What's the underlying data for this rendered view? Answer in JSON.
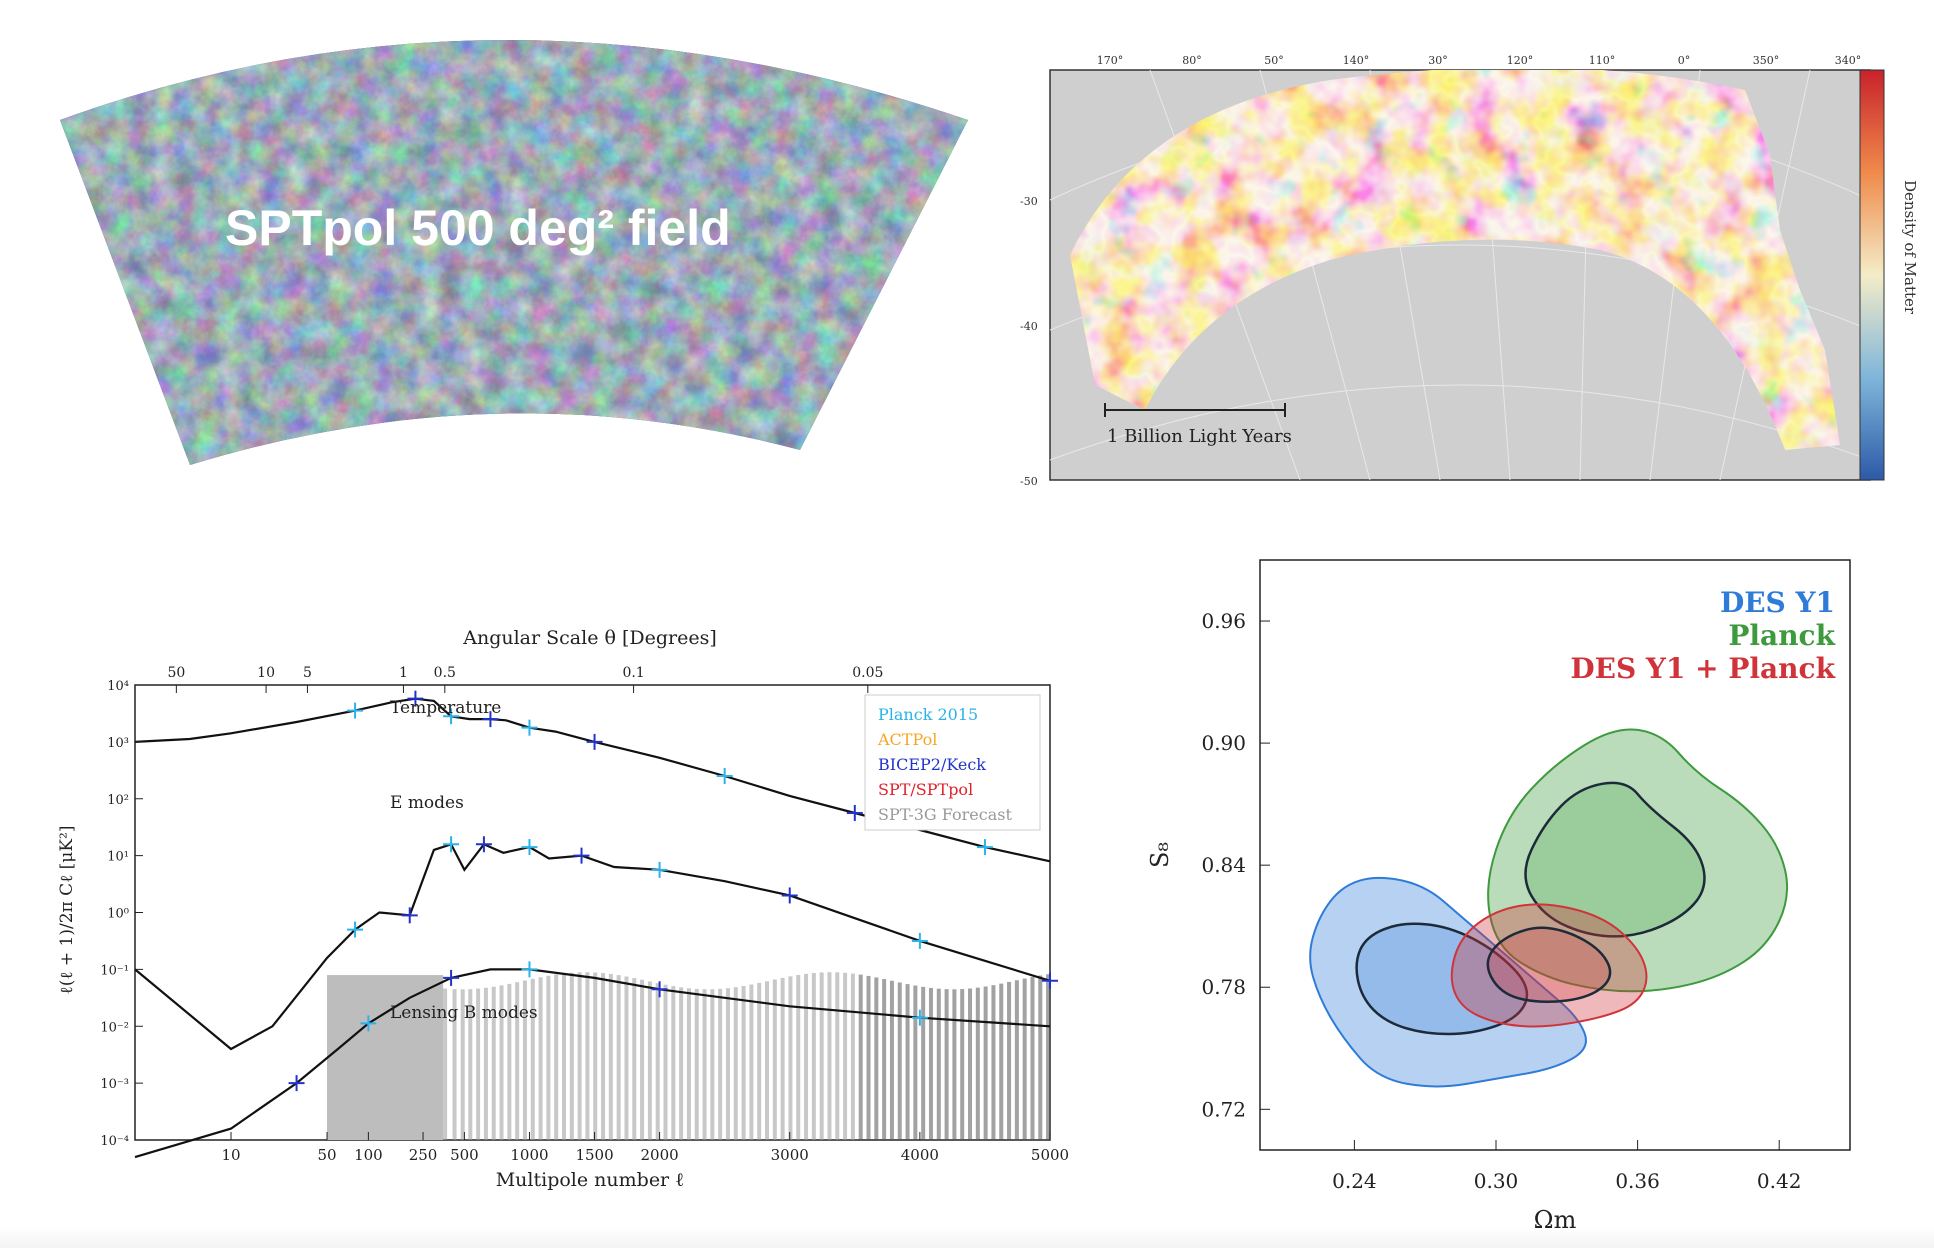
{
  "cmb_map": {
    "title": "SPTpol 500 deg² field",
    "colors": {
      "dark": "#2a3550",
      "mid": "#5f7689",
      "light": "#c9e6e8"
    }
  },
  "des_map": {
    "lon_labels": [
      "170°",
      "80°",
      "50°",
      "140°",
      "30°",
      "120°",
      "110°",
      "0°",
      "350°",
      "340°"
    ],
    "lat_labels": [
      "-30",
      "-40",
      "-50"
    ],
    "scale_label": "1 Billion Light Years",
    "colorbar_label": "Density of Matter",
    "colors": {
      "high": "#c8222b",
      "mid": "#f4ecc8",
      "low": "#2c5aa8"
    }
  },
  "chart_data": [
    {
      "type": "line",
      "title": "",
      "top_axis_label": "Angular Scale θ [Degrees]",
      "top_ticks": [
        "50",
        "10",
        "5",
        "1",
        "0.5",
        "0.1",
        "0.05"
      ],
      "top_tick_ell": [
        4,
        18,
        36,
        180,
        360,
        1800,
        3600
      ],
      "xlabel": "Multipole number ℓ",
      "ylabel": "ℓ(ℓ + 1)/2π Cℓ [μK²]",
      "x_ticks": [
        10,
        50,
        100,
        250,
        500,
        1000,
        1500,
        2000,
        3000,
        4000,
        5000
      ],
      "xlim": [
        2,
        5000
      ],
      "y_ticks": [
        "10⁴",
        "10³",
        "10²",
        "10¹",
        "10⁰",
        "10⁻¹",
        "10⁻²",
        "10⁻³",
        "10⁻⁴"
      ],
      "y_tick_exp": [
        4,
        3,
        2,
        1,
        0,
        -1,
        -2,
        -3,
        -4
      ],
      "ylim_log10": [
        -4,
        4
      ],
      "annotations": [
        "Temperature",
        "E modes",
        "Lensing B modes"
      ],
      "legend": [
        "Planck 2015",
        "ACTPol",
        "BICEP2/Keck",
        "SPT/SPTpol",
        "SPT-3G Forecast"
      ],
      "legend_colors": [
        "#2ab3e8",
        "#f5a623",
        "#2233cc",
        "#e0202a",
        "#999999"
      ],
      "series": [
        {
          "name": "Temperature",
          "x": [
            2,
            5,
            10,
            30,
            80,
            150,
            220,
            300,
            400,
            540,
            700,
            820,
            1000,
            1200,
            1500,
            2000,
            2500,
            3000,
            3500,
            4000,
            4500,
            5000
          ],
          "y_log10": [
            3.0,
            3.05,
            3.15,
            3.35,
            3.55,
            3.7,
            3.76,
            3.72,
            3.45,
            3.4,
            3.4,
            3.38,
            3.25,
            3.18,
            3.0,
            2.72,
            2.4,
            2.05,
            1.75,
            1.45,
            1.15,
            0.9
          ]
        },
        {
          "name": "E modes",
          "x": [
            2,
            10,
            20,
            50,
            80,
            120,
            200,
            300,
            400,
            500,
            650,
            800,
            1000,
            1150,
            1400,
            1650,
            2000,
            2500,
            3000,
            3500,
            4000,
            4500,
            5000
          ],
          "y_log10": [
            -1.0,
            -2.4,
            -2.0,
            -0.8,
            -0.3,
            0.0,
            -0.05,
            1.1,
            1.2,
            0.75,
            1.2,
            1.05,
            1.15,
            0.95,
            1.0,
            0.8,
            0.75,
            0.55,
            0.3,
            -0.1,
            -0.5,
            -0.85,
            -1.2
          ]
        },
        {
          "name": "Lensing B modes",
          "x": [
            2,
            10,
            30,
            60,
            100,
            200,
            400,
            700,
            1000,
            1500,
            2000,
            3000,
            4000,
            5000
          ],
          "y_log10": [
            -4.3,
            -3.8,
            -3.0,
            -2.4,
            -1.95,
            -1.5,
            -1.15,
            -1.0,
            -1.0,
            -1.15,
            -1.35,
            -1.65,
            -1.85,
            -2.0
          ]
        }
      ]
    },
    {
      "type": "contour",
      "title": "",
      "xlabel": "Ωm",
      "ylabel": "S₈",
      "xlim": [
        0.2,
        0.45
      ],
      "ylim": [
        0.7,
        0.99
      ],
      "x_ticks": [
        "0.24",
        "0.30",
        "0.36",
        "0.42"
      ],
      "x_tick_values": [
        0.24,
        0.3,
        0.36,
        0.42
      ],
      "y_ticks": [
        "0.96",
        "0.90",
        "0.84",
        "0.78",
        "0.72"
      ],
      "y_tick_values": [
        0.96,
        0.9,
        0.84,
        0.78,
        0.72
      ],
      "legend": [
        "DES Y1",
        "Planck",
        "DES Y1 + Planck"
      ],
      "legend_colors": [
        "#2f7bd8",
        "#3d9a3d",
        "#d0343a"
      ],
      "legend_placement": "top-right",
      "contours": [
        {
          "name": "DES Y1",
          "color": "#2f7bd8",
          "level": "95%",
          "points": [
            [
              0.22,
              0.795
            ],
            [
              0.225,
              0.815
            ],
            [
              0.235,
              0.83
            ],
            [
              0.25,
              0.835
            ],
            [
              0.27,
              0.83
            ],
            [
              0.285,
              0.815
            ],
            [
              0.3,
              0.8
            ],
            [
              0.32,
              0.78
            ],
            [
              0.335,
              0.765
            ],
            [
              0.34,
              0.75
            ],
            [
              0.325,
              0.74
            ],
            [
              0.3,
              0.735
            ],
            [
              0.275,
              0.73
            ],
            [
              0.25,
              0.735
            ],
            [
              0.235,
              0.755
            ],
            [
              0.225,
              0.775
            ]
          ]
        },
        {
          "name": "DES Y1",
          "color": "#2f7bd8",
          "level": "68%",
          "points": [
            [
              0.24,
              0.792
            ],
            [
              0.245,
              0.805
            ],
            [
              0.26,
              0.812
            ],
            [
              0.28,
              0.81
            ],
            [
              0.3,
              0.798
            ],
            [
              0.315,
              0.78
            ],
            [
              0.31,
              0.765
            ],
            [
              0.29,
              0.757
            ],
            [
              0.27,
              0.757
            ],
            [
              0.253,
              0.763
            ],
            [
              0.243,
              0.775
            ]
          ]
        },
        {
          "name": "Planck",
          "color": "#3d9a3d",
          "level": "95%",
          "points": [
            [
              0.295,
              0.83
            ],
            [
              0.305,
              0.865
            ],
            [
              0.325,
              0.89
            ],
            [
              0.35,
              0.908
            ],
            [
              0.37,
              0.905
            ],
            [
              0.385,
              0.885
            ],
            [
              0.405,
              0.87
            ],
            [
              0.42,
              0.85
            ],
            [
              0.425,
              0.825
            ],
            [
              0.415,
              0.8
            ],
            [
              0.395,
              0.785
            ],
            [
              0.37,
              0.778
            ],
            [
              0.345,
              0.778
            ],
            [
              0.32,
              0.785
            ],
            [
              0.3,
              0.8
            ]
          ]
        },
        {
          "name": "Planck",
          "color": "#3d9a3d",
          "level": "68%",
          "points": [
            [
              0.31,
              0.835
            ],
            [
              0.32,
              0.86
            ],
            [
              0.335,
              0.878
            ],
            [
              0.355,
              0.882
            ],
            [
              0.365,
              0.868
            ],
            [
              0.385,
              0.85
            ],
            [
              0.39,
              0.83
            ],
            [
              0.38,
              0.815
            ],
            [
              0.36,
              0.805
            ],
            [
              0.34,
              0.805
            ],
            [
              0.32,
              0.815
            ]
          ]
        },
        {
          "name": "DES Y1 + Planck",
          "color": "#d0343a",
          "level": "95%",
          "points": [
            [
              0.28,
              0.785
            ],
            [
              0.285,
              0.805
            ],
            [
              0.3,
              0.818
            ],
            [
              0.32,
              0.822
            ],
            [
              0.345,
              0.815
            ],
            [
              0.36,
              0.8
            ],
            [
              0.365,
              0.785
            ],
            [
              0.36,
              0.772
            ],
            [
              0.345,
              0.765
            ],
            [
              0.32,
              0.76
            ],
            [
              0.3,
              0.762
            ],
            [
              0.285,
              0.77
            ]
          ]
        },
        {
          "name": "DES Y1 + Planck",
          "color": "#d0343a",
          "level": "68%",
          "points": [
            [
              0.295,
              0.79
            ],
            [
              0.3,
              0.802
            ],
            [
              0.315,
              0.81
            ],
            [
              0.33,
              0.808
            ],
            [
              0.345,
              0.798
            ],
            [
              0.35,
              0.785
            ],
            [
              0.34,
              0.775
            ],
            [
              0.32,
              0.772
            ],
            [
              0.303,
              0.776
            ]
          ]
        }
      ]
    }
  ]
}
